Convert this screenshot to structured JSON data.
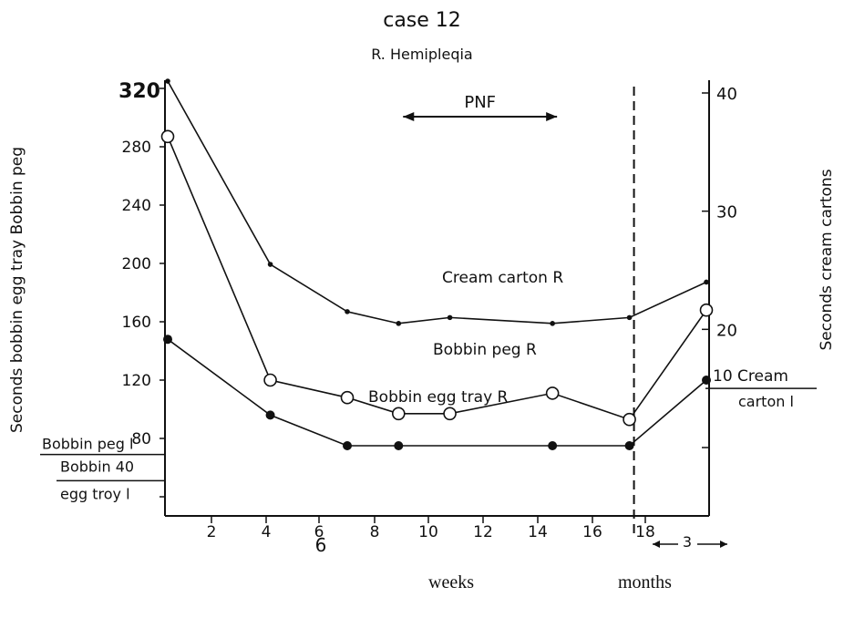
{
  "title": "case 12",
  "subtitle": "R. Hemipleqia",
  "x_unit_weeks": "weeks",
  "x_unit_months": "months",
  "chart_data": {
    "type": "line",
    "ylabel_left": "Seconds bobbin egg tray Bobbin peg",
    "ylabel_right": "Seconds cream cartons",
    "ylim_left": [
      40,
      320
    ],
    "ylim_right": [
      10,
      40
    ],
    "left_ticks": [
      "320",
      "280",
      "240",
      "200",
      "160",
      "120",
      "80",
      "40"
    ],
    "right_ticks": [
      "40",
      "30",
      "20",
      "10"
    ],
    "x_ticks": [
      "2",
      "4",
      "6",
      "6",
      "8",
      "10",
      "12",
      "14",
      "16",
      "18"
    ],
    "x_ticks_note": "-3-",
    "annotation": "PNF",
    "pnf_range": [
      9,
      15
    ],
    "divider_at": 18,
    "series": [
      {
        "name": "Cream carton R",
        "axis": "right",
        "marker": "tick",
        "x": [
          0,
          4,
          7,
          9,
          11,
          15,
          18,
          21
        ],
        "y": [
          41,
          25.5,
          21.5,
          20.5,
          21,
          20.5,
          21,
          24
        ]
      },
      {
        "name": "Bobbin peg R",
        "axis": "left",
        "marker": "open",
        "x": [
          0,
          4,
          7,
          9,
          11,
          15,
          18,
          21
        ],
        "y": [
          287,
          120,
          108,
          97,
          97,
          111,
          93,
          168
        ]
      },
      {
        "name": "Bobbin egg tray R",
        "axis": "left",
        "marker": "filled",
        "x": [
          0,
          4,
          7,
          9,
          15,
          18,
          21
        ],
        "y": [
          148,
          96,
          75,
          75,
          75,
          75,
          120
        ]
      }
    ],
    "left_baselines": [
      {
        "label": "Bobbin peg l",
        "value": 69
      },
      {
        "label": "Bobbin 40 egg troy l",
        "value": 51
      }
    ],
    "right_baselines": [
      {
        "label": "10 Cream carton l",
        "value": 15
      }
    ]
  }
}
